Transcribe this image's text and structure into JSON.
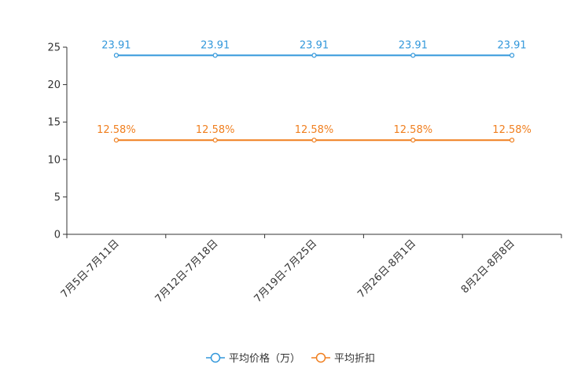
{
  "chart_data": {
    "type": "line",
    "title": "",
    "xlabel": "",
    "ylabel": "",
    "ylim": [
      0,
      25
    ],
    "yticks": [
      0,
      5,
      10,
      15,
      20,
      25
    ],
    "grid": false,
    "legend_position": "bottom-center",
    "categories": [
      "7月5日-7月11日",
      "7月12日-7月18日",
      "7月19日-7月25日",
      "7月26日-8月1日",
      "8月2日-8月8日"
    ],
    "series": [
      {
        "name": "平均价格（万）",
        "color": "#3398DB",
        "values": [
          23.91,
          23.91,
          23.91,
          23.91,
          23.91
        ],
        "labels": [
          "23.91",
          "23.91",
          "23.91",
          "23.91",
          "23.91"
        ]
      },
      {
        "name": "平均折扣",
        "color": "#F07F1F",
        "values": [
          12.58,
          12.58,
          12.58,
          12.58,
          12.58
        ],
        "labels": [
          "12.58%",
          "12.58%",
          "12.58%",
          "12.58%",
          "12.58%"
        ]
      }
    ]
  }
}
